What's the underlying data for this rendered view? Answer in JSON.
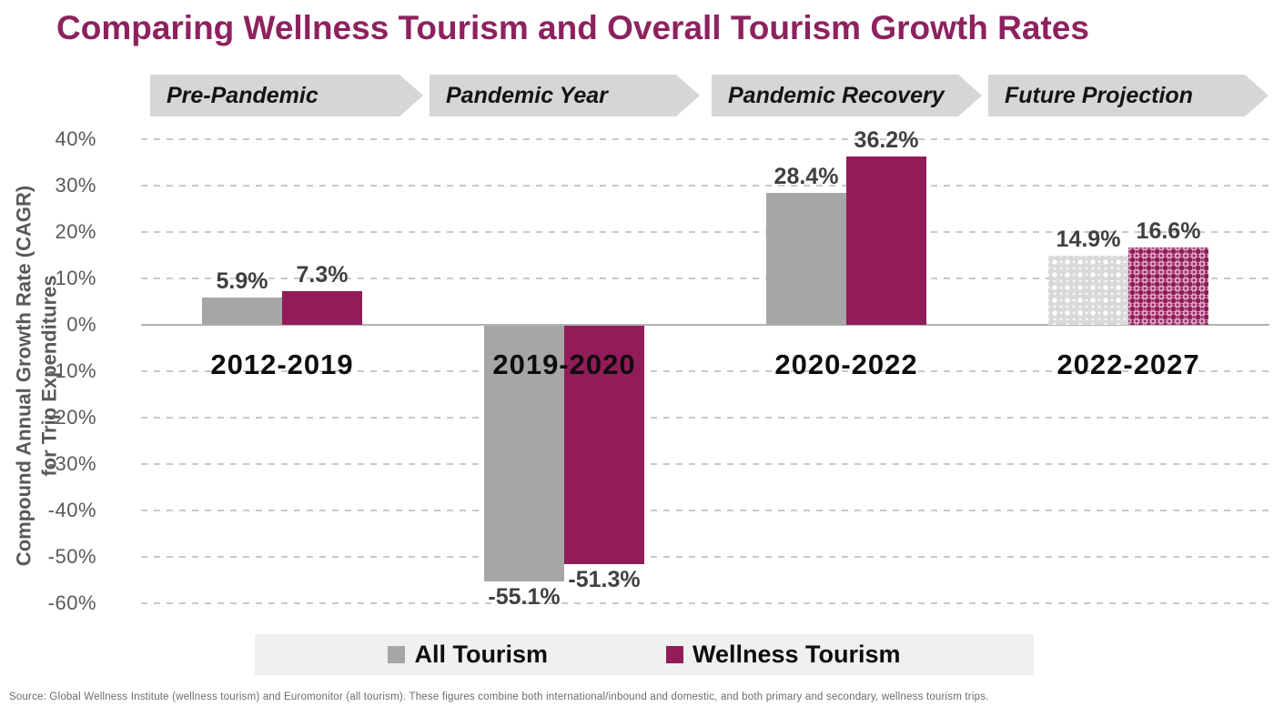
{
  "title": "Comparing Wellness Tourism and Overall Tourism Growth Rates",
  "phases": [
    {
      "label": "Pre-Pandemic"
    },
    {
      "label": "Pandemic Year"
    },
    {
      "label": "Pandemic Recovery"
    },
    {
      "label": "Future Projection"
    }
  ],
  "chart_data": {
    "type": "bar",
    "title": "Comparing Wellness Tourism and Overall Tourism Growth Rates",
    "categories": [
      "2012-2019",
      "2019-2020",
      "2020-2022",
      "2022-2027"
    ],
    "series": [
      {
        "name": "All Tourism",
        "color": "#a6a6a6",
        "values": [
          5.9,
          -55.1,
          28.4,
          14.9
        ]
      },
      {
        "name": "Wellness Tourism",
        "color": "#921c59",
        "values": [
          7.3,
          -51.3,
          36.2,
          16.6
        ]
      }
    ],
    "value_labels": [
      [
        "5.9%",
        "7.3%"
      ],
      [
        "-55.1%",
        "-51.3%"
      ],
      [
        "28.4%",
        "36.2%"
      ],
      [
        "14.9%",
        "16.6%"
      ]
    ],
    "projected_category": "2022-2027",
    "projected_category_index": 3,
    "ylabel_line1": "Compound Annual Growth Rate (CAGR)",
    "ylabel_line2": "for Trip Expenditures",
    "ylim": [
      -60,
      40
    ],
    "yticks": [
      40,
      30,
      20,
      10,
      0,
      -10,
      -20,
      -30,
      -40,
      -50,
      -60
    ],
    "ytick_labels": [
      "40%",
      "30%",
      "20%",
      "10%",
      "0%",
      "-10%",
      "-20%",
      "-30%",
      "-40%",
      "-50%",
      "-60%"
    ],
    "grid": "horizontal-dashed",
    "legend_position": "bottom"
  },
  "legend": {
    "items": [
      {
        "label": "All Tourism",
        "color": "#a6a6a6"
      },
      {
        "label": "Wellness Tourism",
        "color": "#921c59"
      }
    ]
  },
  "source_note": "Source: Global Wellness Institute (wellness tourism) and Euromonitor (all tourism). These figures combine both international/inbound and domestic, and both primary and secondary, wellness tourism trips.",
  "colors": {
    "title": "#8e215f",
    "all_tourism": "#a6a6a6",
    "wellness_tourism": "#921c59",
    "banner_bg": "#d6d6d6",
    "legend_bg": "#f0f0f0",
    "axis_text": "#595959",
    "value_label": "#404040"
  }
}
